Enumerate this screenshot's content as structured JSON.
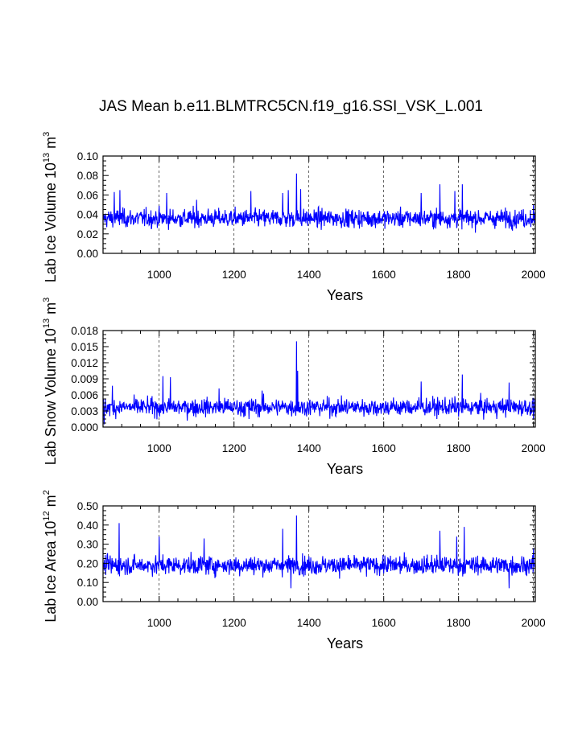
{
  "title": "JAS Mean b.e11.BLMTRC5CN.f19_g16.SSI_VSK_L.001",
  "colors": {
    "series": "#0000ff",
    "axes": "#000000",
    "grid": "#000000"
  },
  "chart_data": [
    {
      "type": "line",
      "title": "",
      "xlabel": "Years",
      "ylabel": {
        "main": "Lab Ice Volume 10",
        "sup": "13",
        "unit": " m",
        "unit_sup": "3"
      },
      "xlim": [
        850,
        2005
      ],
      "ylim": [
        0.0,
        0.1
      ],
      "xticks": [
        1000,
        1200,
        1400,
        1600,
        1800,
        2000
      ],
      "yticks": [
        "0.00",
        "0.02",
        "0.04",
        "0.06",
        "0.08",
        "0.10"
      ],
      "ytick_values": [
        0.0,
        0.02,
        0.04,
        0.06,
        0.08,
        0.1
      ],
      "grid": "vertical dashed at major x ticks",
      "series": {
        "x_start": 850,
        "x_end": 2005,
        "keypoints": [
          {
            "x": 850,
            "y": 0.035
          },
          {
            "x": 880,
            "y": 0.063
          },
          {
            "x": 895,
            "y": 0.065
          },
          {
            "x": 1020,
            "y": 0.062
          },
          {
            "x": 1100,
            "y": 0.055
          },
          {
            "x": 1245,
            "y": 0.064
          },
          {
            "x": 1330,
            "y": 0.062
          },
          {
            "x": 1345,
            "y": 0.065
          },
          {
            "x": 1367,
            "y": 0.082
          },
          {
            "x": 1378,
            "y": 0.066
          },
          {
            "x": 1700,
            "y": 0.062
          },
          {
            "x": 1750,
            "y": 0.071
          },
          {
            "x": 1790,
            "y": 0.064
          },
          {
            "x": 1810,
            "y": 0.071
          },
          {
            "x": 2000,
            "y": 0.05
          }
        ],
        "mean": 0.036,
        "min": 0.015,
        "max": 0.082
      }
    },
    {
      "type": "line",
      "title": "",
      "xlabel": "Years",
      "ylabel": {
        "main": "Lab Snow Volume 10",
        "sup": "13",
        "unit": " m",
        "unit_sup": "3"
      },
      "xlim": [
        850,
        2005
      ],
      "ylim": [
        0.0,
        0.018
      ],
      "xticks": [
        1000,
        1200,
        1400,
        1600,
        1800,
        2000
      ],
      "yticks": [
        "0.000",
        "0.003",
        "0.006",
        "0.009",
        "0.012",
        "0.015",
        "0.018"
      ],
      "ytick_values": [
        0.0,
        0.003,
        0.006,
        0.009,
        0.012,
        0.015,
        0.018
      ],
      "grid": "vertical dashed at major x ticks",
      "series": {
        "x_start": 850,
        "x_end": 2005,
        "keypoints": [
          {
            "x": 853,
            "y": 0.0005
          },
          {
            "x": 875,
            "y": 0.0077
          },
          {
            "x": 1010,
            "y": 0.0095
          },
          {
            "x": 1030,
            "y": 0.0093
          },
          {
            "x": 1160,
            "y": 0.0072
          },
          {
            "x": 1240,
            "y": 0.0015
          },
          {
            "x": 1275,
            "y": 0.0068
          },
          {
            "x": 1367,
            "y": 0.016
          },
          {
            "x": 1370,
            "y": 0.0105
          },
          {
            "x": 1700,
            "y": 0.0085
          },
          {
            "x": 1810,
            "y": 0.0098
          },
          {
            "x": 1935,
            "y": 0.0083
          },
          {
            "x": 2000,
            "y": 0.0015
          }
        ],
        "mean": 0.0037,
        "min": 0.0005,
        "max": 0.016
      }
    },
    {
      "type": "line",
      "title": "",
      "xlabel": "Years",
      "ylabel": {
        "main": "Lab Ice Area 10",
        "sup": "12",
        "unit": " m",
        "unit_sup": "2"
      },
      "xlim": [
        850,
        2005
      ],
      "ylim": [
        0.0,
        0.5
      ],
      "xticks": [
        1000,
        1200,
        1400,
        1600,
        1800,
        2000
      ],
      "yticks": [
        "0.00",
        "0.10",
        "0.20",
        "0.30",
        "0.40",
        "0.50"
      ],
      "ytick_values": [
        0.0,
        0.1,
        0.2,
        0.3,
        0.4,
        0.5
      ],
      "grid": "vertical dashed at major x ticks",
      "series": {
        "x_start": 850,
        "x_end": 2005,
        "keypoints": [
          {
            "x": 850,
            "y": 0.18
          },
          {
            "x": 893,
            "y": 0.41
          },
          {
            "x": 1000,
            "y": 0.34
          },
          {
            "x": 1120,
            "y": 0.33
          },
          {
            "x": 1330,
            "y": 0.38
          },
          {
            "x": 1352,
            "y": 0.07
          },
          {
            "x": 1367,
            "y": 0.45
          },
          {
            "x": 1750,
            "y": 0.37
          },
          {
            "x": 1795,
            "y": 0.34
          },
          {
            "x": 1815,
            "y": 0.39
          },
          {
            "x": 1935,
            "y": 0.07
          },
          {
            "x": 2000,
            "y": 0.28
          }
        ],
        "mean": 0.19,
        "min": 0.07,
        "max": 0.45
      }
    }
  ]
}
